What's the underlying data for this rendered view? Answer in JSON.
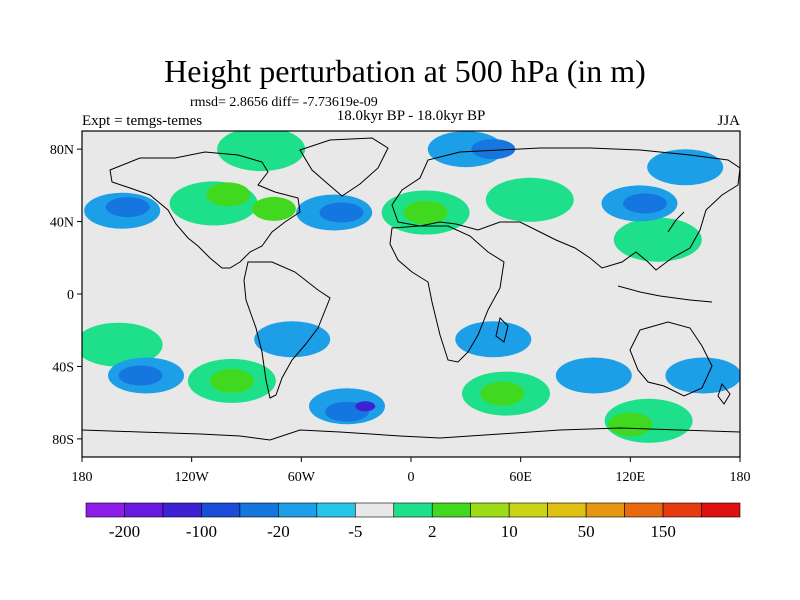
{
  "chart_data": {
    "type": "heatmap",
    "title": "Height perturbation at 500 hPa (in m)",
    "stats_line": "rmsd= 2.8656 diff= -7.73619e-09",
    "left_label": "Expt = temgs-temes",
    "center_label": "18.0kyr BP - 18.0kyr BP",
    "right_label": "JJA",
    "x_ticks": [
      "180",
      "120W",
      "60W",
      "0",
      "60E",
      "120E",
      "180"
    ],
    "y_ticks": [
      "80N",
      "40N",
      "0",
      "40S",
      "80S"
    ],
    "x_range": [
      -180,
      180
    ],
    "y_range": [
      -90,
      90
    ],
    "colorbar": {
      "labels": [
        "-200",
        "-100",
        "-20",
        "-5",
        "2",
        "10",
        "50",
        "150"
      ],
      "colors": [
        "#8f1dea",
        "#6a1ae0",
        "#3c22d4",
        "#1b4ed8",
        "#1676e0",
        "#1d9fe8",
        "#22c7ea",
        "#e8e8e8",
        "#1fe08a",
        "#40d91f",
        "#9fdc18",
        "#c8d414",
        "#e0c010",
        "#e69710",
        "#e86a10",
        "#e63a10",
        "#e01010"
      ]
    },
    "anomalies": [
      {
        "lon": -158,
        "lat": 46,
        "value": -5
      },
      {
        "lon": -155,
        "lat": 48,
        "value": -20
      },
      {
        "lon": -108,
        "lat": 50,
        "value": 2
      },
      {
        "lon": -100,
        "lat": 55,
        "value": 10
      },
      {
        "lon": -75,
        "lat": 47,
        "value": 10
      },
      {
        "lon": -82,
        "lat": 80,
        "value": 2
      },
      {
        "lon": -42,
        "lat": 45,
        "value": -5
      },
      {
        "lon": -38,
        "lat": 45,
        "value": -20
      },
      {
        "lon": 8,
        "lat": 45,
        "value": 2
      },
      {
        "lon": 8,
        "lat": 45,
        "value": 10
      },
      {
        "lon": 30,
        "lat": 80,
        "value": -5
      },
      {
        "lon": 45,
        "lat": 80,
        "value": -20
      },
      {
        "lon": 65,
        "lat": 52,
        "value": 2
      },
      {
        "lon": 125,
        "lat": 50,
        "value": -5
      },
      {
        "lon": 128,
        "lat": 50,
        "value": -20
      },
      {
        "lon": 135,
        "lat": 30,
        "value": 2
      },
      {
        "lon": 150,
        "lat": 70,
        "value": -5
      },
      {
        "lon": -160,
        "lat": -28,
        "value": 2
      },
      {
        "lon": -145,
        "lat": -45,
        "value": -5
      },
      {
        "lon": -148,
        "lat": -45,
        "value": -20
      },
      {
        "lon": -98,
        "lat": -48,
        "value": 2
      },
      {
        "lon": -98,
        "lat": -48,
        "value": 10
      },
      {
        "lon": -65,
        "lat": -25,
        "value": -5
      },
      {
        "lon": -35,
        "lat": -62,
        "value": -5
      },
      {
        "lon": -35,
        "lat": -65,
        "value": -20
      },
      {
        "lon": -25,
        "lat": -62,
        "value": -100
      },
      {
        "lon": 52,
        "lat": -55,
        "value": 2
      },
      {
        "lon": 50,
        "lat": -55,
        "value": 10
      },
      {
        "lon": 100,
        "lat": -45,
        "value": -5
      },
      {
        "lon": 160,
        "lat": -45,
        "value": -5
      },
      {
        "lon": 130,
        "lat": -70,
        "value": 2
      },
      {
        "lon": 120,
        "lat": -72,
        "value": 10
      },
      {
        "lon": 45,
        "lat": -25,
        "value": -5
      }
    ]
  }
}
